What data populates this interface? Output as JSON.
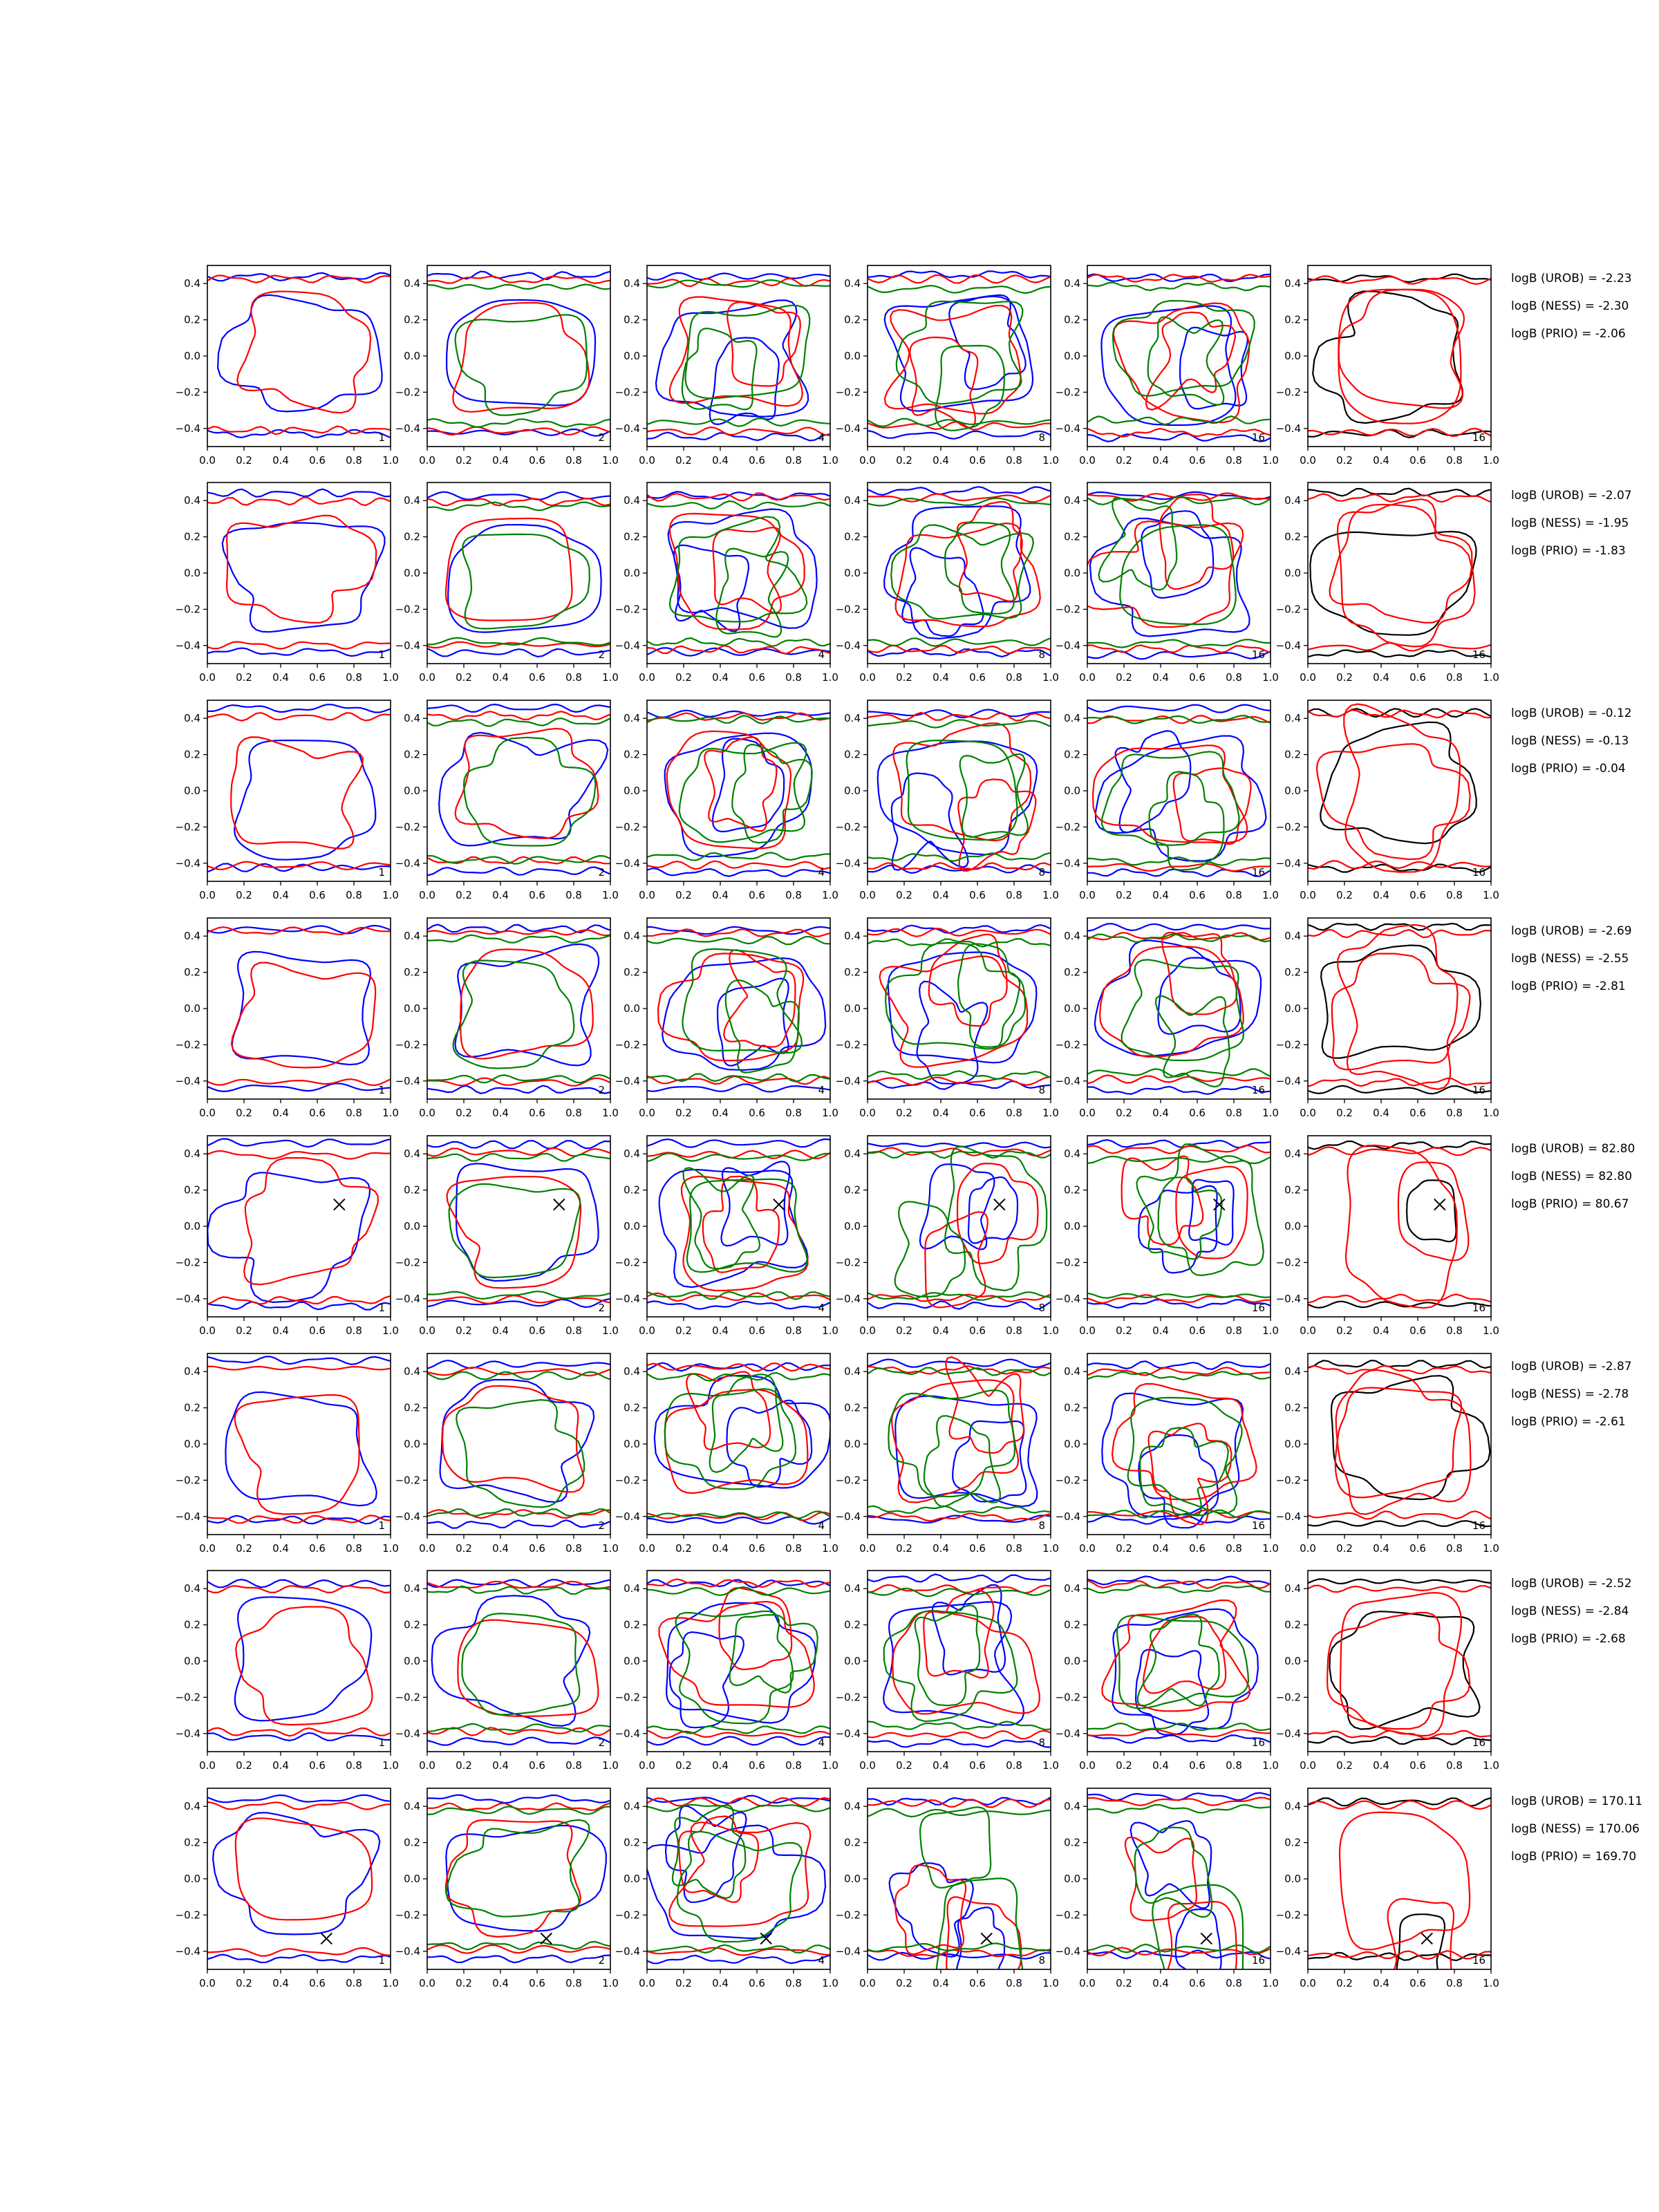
{
  "chart_data": {
    "type": "line",
    "description_of_content": "8 rows x 6 columns of contour plots; columns 1-5 show red, blue and green contours, column 6 shows black and red contours",
    "xlim": [
      0.0,
      1.0
    ],
    "ylim": [
      -0.5,
      0.5
    ],
    "x_ticks": [
      "0.0",
      "0.2",
      "0.4",
      "0.6",
      "0.8",
      "1.0"
    ],
    "y_ticks": [
      "0.4",
      "0.2",
      "0.0",
      "−0.2",
      "−0.4"
    ],
    "panel_labels": [
      "1",
      "2",
      "4",
      "8",
      "16",
      "16"
    ],
    "colors": {
      "red": "#ff0000",
      "blue": "#0000ff",
      "green": "#008000",
      "black": "#000000",
      "marker": "#000000"
    },
    "rows": [
      {
        "logB": [
          "logB (UROB) = -2.23",
          "logB (NESS) = -2.30",
          "logB (PRIO) = -2.06"
        ],
        "marker": null
      },
      {
        "logB": [
          "logB (UROB) = -2.07",
          "logB (NESS) = -1.95",
          "logB (PRIO) = -1.83"
        ],
        "marker": null
      },
      {
        "logB": [
          "logB (UROB) = -0.12",
          "logB (NESS) = -0.13",
          "logB (PRIO) = -0.04"
        ],
        "marker": null
      },
      {
        "logB": [
          "logB (UROB) = -2.69",
          "logB (NESS) = -2.55",
          "logB (PRIO) = -2.81"
        ],
        "marker": null
      },
      {
        "logB": [
          "logB (UROB) = 82.80",
          "logB (NESS) = 82.80",
          "logB (PRIO) = 80.67"
        ],
        "marker": [
          0.72,
          0.12
        ]
      },
      {
        "logB": [
          "logB (UROB) = -2.87",
          "logB (NESS) = -2.78",
          "logB (PRIO) = -2.61"
        ],
        "marker": null
      },
      {
        "logB": [
          "logB (UROB) = -2.52",
          "logB (NESS) = -2.84",
          "logB (PRIO) = -2.68"
        ],
        "marker": null
      },
      {
        "logB": [
          "logB (UROB) = 170.11",
          "logB (NESS) = 170.06",
          "logB (PRIO) = 169.70"
        ],
        "marker": [
          0.65,
          -0.33
        ]
      }
    ]
  }
}
